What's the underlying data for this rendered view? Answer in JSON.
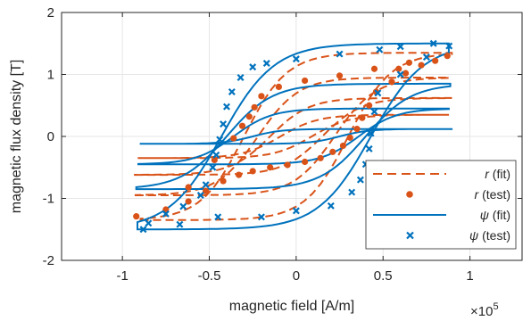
{
  "chart_data": {
    "type": "line",
    "xlabel": "magnetic field [A/m]",
    "ylabel": "magnetic flux density [T]",
    "x_multiplier_base": "×10",
    "x_multiplier_exp": "5",
    "x_multiplier": 100000,
    "xlim": [
      -1.35,
      1.3
    ],
    "ylim": [
      -2,
      2
    ],
    "xticks": [
      {
        "value": -1,
        "label": "-1"
      },
      {
        "value": -0.5,
        "label": "-0.5"
      },
      {
        "value": 0,
        "label": "0"
      },
      {
        "value": 0.5,
        "label": "0.5"
      },
      {
        "value": 1,
        "label": "1"
      }
    ],
    "yticks": [
      {
        "value": -2,
        "label": "-2"
      },
      {
        "value": -1,
        "label": "-1"
      },
      {
        "value": 0,
        "label": "0"
      },
      {
        "value": 1,
        "label": "1"
      },
      {
        "value": 2,
        "label": "2"
      }
    ],
    "grid": true,
    "legend_position": "bottom-right",
    "colors": {
      "r": "#D95319",
      "psi": "#0072BD"
    },
    "series": [
      {
        "name": "r (fit)",
        "legend_main": "r",
        "legend_suffix": " (fit)",
        "style": "dashed",
        "color": "#D95319",
        "loops": [
          {
            "hc": 0.3,
            "bs": 1.35,
            "slope": 0.9
          },
          {
            "hc": 0.22,
            "bs": 0.95,
            "slope": 0.8
          },
          {
            "hc": 0.15,
            "bs": 0.62,
            "slope": 0.7
          },
          {
            "hc": 0.09,
            "bs": 0.35,
            "slope": 0.6
          }
        ]
      },
      {
        "name": "r (test)",
        "legend_main": "r",
        "legend_suffix": " (test)",
        "style": "dot",
        "color": "#D95319",
        "points": [
          [
            -0.92,
            -1.29
          ],
          [
            -0.75,
            -1.18
          ],
          [
            -0.62,
            -1.05
          ],
          [
            -0.52,
            -0.88
          ],
          [
            -0.42,
            -0.72
          ],
          [
            -0.33,
            -0.62
          ],
          [
            -0.25,
            -0.56
          ],
          [
            -0.15,
            -0.5
          ],
          [
            -0.05,
            -0.46
          ],
          [
            0.05,
            -0.41
          ],
          [
            0.14,
            -0.35
          ],
          [
            0.21,
            -0.25
          ],
          [
            0.27,
            -0.15
          ],
          [
            0.31,
            -0.02
          ],
          [
            0.35,
            0.12
          ],
          [
            0.38,
            0.3
          ],
          [
            0.42,
            0.5
          ],
          [
            0.46,
            0.72
          ],
          [
            0.55,
            0.88
          ],
          [
            0.63,
            1.02
          ],
          [
            0.72,
            1.15
          ],
          [
            0.8,
            1.22
          ],
          [
            0.87,
            1.3
          ],
          [
            0.65,
            1.19
          ],
          [
            0.45,
            1.09
          ],
          [
            0.25,
            0.98
          ],
          [
            0.05,
            0.9
          ],
          [
            -0.1,
            0.8
          ],
          [
            -0.2,
            0.65
          ],
          [
            -0.24,
            0.47
          ],
          [
            -0.27,
            0.32
          ],
          [
            -0.31,
            0.17
          ],
          [
            -0.36,
            -0.03
          ],
          [
            -0.47,
            -0.38
          ],
          [
            -0.62,
            -0.82
          ],
          [
            0.59,
            1.09
          ]
        ]
      },
      {
        "name": "ψ (fit)",
        "legend_main": "ψ",
        "legend_suffix": " (fit)",
        "style": "solid",
        "color": "#0072BD",
        "loops": [
          {
            "hc": 0.43,
            "bs": 1.5,
            "slope": 0.35,
            "k": 1.1
          },
          {
            "hc": 0.4,
            "bs": 0.85,
            "slope": 0.3,
            "k": 0.9
          },
          {
            "hc": 0.36,
            "bs": 0.45,
            "slope": 0.25,
            "k": 0.7
          },
          {
            "hc": 0.25,
            "bs": 0.12,
            "slope": 0.2,
            "k": 0.5
          }
        ]
      },
      {
        "name": "ψ (test)",
        "legend_main": "ψ",
        "legend_suffix": " (test)",
        "style": "x",
        "color": "#0072BD",
        "points": [
          [
            -0.88,
            -1.5
          ],
          [
            -0.67,
            -1.42
          ],
          [
            -0.45,
            -1.3
          ],
          [
            -0.2,
            -1.3
          ],
          [
            0.0,
            -1.2
          ],
          [
            0.2,
            -1.12
          ],
          [
            0.32,
            -0.9
          ],
          [
            0.37,
            -0.7
          ],
          [
            0.4,
            -0.45
          ],
          [
            0.42,
            -0.2
          ],
          [
            0.43,
            0.05
          ],
          [
            0.45,
            0.4
          ],
          [
            0.47,
            0.7
          ],
          [
            0.6,
            1.0
          ],
          [
            0.75,
            1.28
          ],
          [
            0.88,
            1.46
          ],
          [
            0.79,
            1.5
          ],
          [
            0.6,
            1.45
          ],
          [
            0.48,
            1.4
          ],
          [
            0.25,
            1.33
          ],
          [
            0.0,
            1.25
          ],
          [
            -0.17,
            1.18
          ],
          [
            -0.25,
            1.12
          ],
          [
            -0.32,
            0.95
          ],
          [
            -0.37,
            0.72
          ],
          [
            -0.4,
            0.48
          ],
          [
            -0.42,
            0.2
          ],
          [
            -0.44,
            -0.05
          ],
          [
            -0.46,
            -0.3
          ],
          [
            -0.48,
            -0.5
          ],
          [
            -0.52,
            -0.78
          ],
          [
            -0.55,
            -0.95
          ],
          [
            -0.65,
            -1.13
          ],
          [
            -0.75,
            -1.25
          ],
          [
            -0.85,
            -1.4
          ]
        ]
      }
    ]
  }
}
